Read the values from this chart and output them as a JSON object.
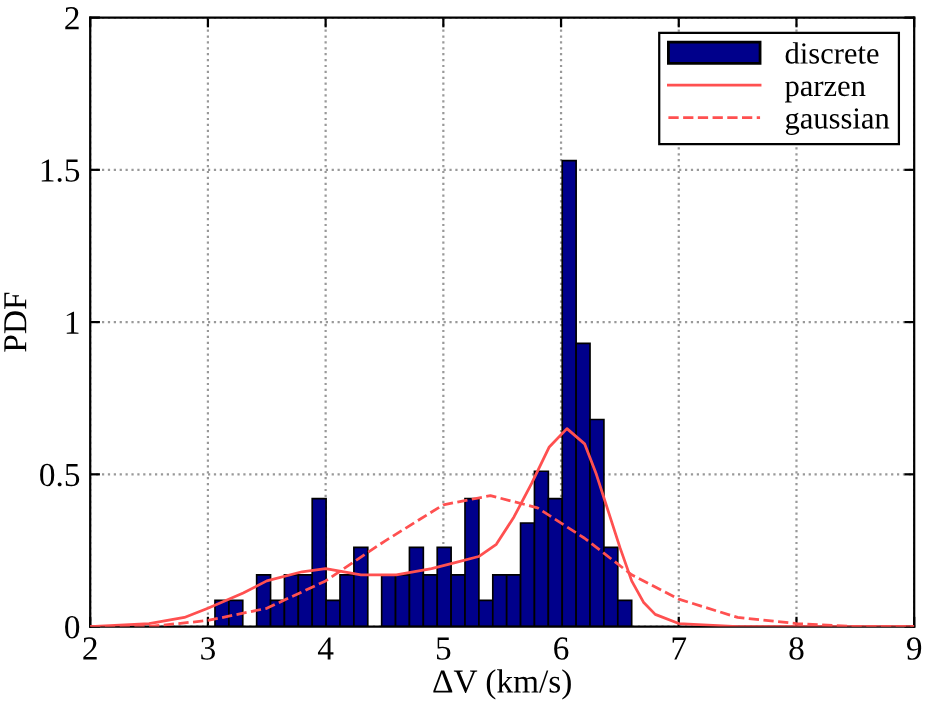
{
  "chart_data": {
    "type": "histogram",
    "xlabel": "ΔV (km/s)",
    "ylabel": "PDF",
    "series": [
      {
        "name": "discrete",
        "color": "#00008b",
        "bins": [
          3.06,
          3.178,
          3.296,
          3.414,
          3.532,
          3.65,
          3.768,
          3.886,
          4.004,
          4.122,
          4.24,
          4.358,
          4.476,
          4.594,
          4.712,
          4.83,
          4.948,
          5.066,
          5.184,
          5.302,
          5.42,
          5.538,
          5.656,
          5.774,
          5.892,
          6.01,
          6.128,
          6.246,
          6.364,
          6.482,
          6.6
        ],
        "values": [
          0.086,
          0.086,
          0,
          0.17,
          0.086,
          0.17,
          0.17,
          0.42,
          0.086,
          0.17,
          0.26,
          0,
          0.17,
          0.17,
          0.26,
          0.17,
          0.26,
          0.17,
          0.42,
          0.086,
          0.17,
          0.17,
          0.34,
          0.51,
          0.42,
          1.53,
          0.93,
          0.68,
          0.26,
          0.086
        ]
      },
      {
        "name": "parzen",
        "type": "line",
        "color": "#ff5050",
        "line_style": "solid",
        "x": [
          2,
          2.5,
          2.8,
          3,
          3.3,
          3.5,
          3.8,
          4,
          4.3,
          4.6,
          4.9,
          5.1,
          5.3,
          5.45,
          5.6,
          5.75,
          5.9,
          6.05,
          6.2,
          6.3,
          6.4,
          6.5,
          6.6,
          6.7,
          6.8,
          7,
          7.5,
          9
        ],
        "values": [
          0,
          0.01,
          0.03,
          0.06,
          0.11,
          0.15,
          0.18,
          0.19,
          0.17,
          0.17,
          0.19,
          0.21,
          0.23,
          0.27,
          0.36,
          0.47,
          0.59,
          0.65,
          0.6,
          0.5,
          0.38,
          0.26,
          0.15,
          0.08,
          0.04,
          0.01,
          0,
          0
        ]
      },
      {
        "name": "gaussian",
        "type": "line",
        "color": "#ff5050",
        "line_style": "dashed",
        "x": [
          2,
          2.5,
          3,
          3.5,
          4,
          4.5,
          5,
          5.4,
          5.8,
          6.2,
          6.6,
          7,
          7.5,
          8,
          8.5,
          9
        ],
        "values": [
          0,
          0,
          0.02,
          0.06,
          0.15,
          0.28,
          0.4,
          0.43,
          0.39,
          0.29,
          0.17,
          0.09,
          0.03,
          0.01,
          0,
          0
        ]
      }
    ],
    "xlim": [
      2,
      9
    ],
    "ylim": [
      0,
      2
    ],
    "xticks": [
      2,
      3,
      4,
      5,
      6,
      7,
      8,
      9
    ],
    "yticks": [
      0,
      0.5,
      1,
      1.5,
      2
    ],
    "grid": true,
    "legend": "top right"
  }
}
